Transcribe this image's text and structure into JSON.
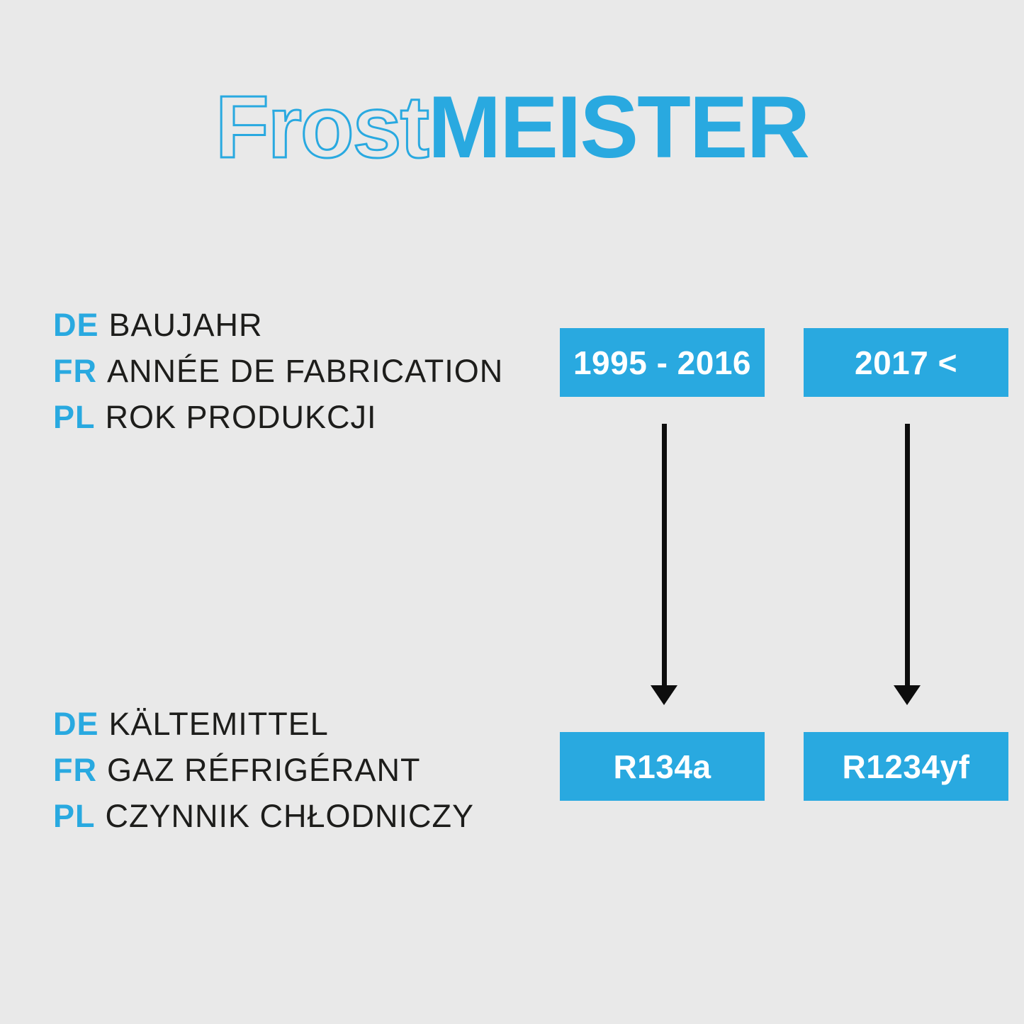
{
  "logo": {
    "outline_text": "Frost",
    "solid_text": "MEISTER"
  },
  "colors": {
    "accent_blue": "#29a9e0",
    "background": "#e9e9e9",
    "text_dark": "#1d1d1b",
    "arrow_black": "#0d0d0d",
    "box_text": "#ffffff"
  },
  "year_labels": {
    "rows": [
      {
        "prefix": "DE",
        "text": "BAUJAHR"
      },
      {
        "prefix": "FR",
        "text": "ANNÉE DE FABRICATION"
      },
      {
        "prefix": "PL",
        "text": "ROK PRODUKCJI"
      }
    ]
  },
  "refrigerant_labels": {
    "rows": [
      {
        "prefix": "DE",
        "text": "KÄLTEMITTEL"
      },
      {
        "prefix": "FR",
        "text": "GAZ RÉFRIGÉRANT"
      },
      {
        "prefix": "PL",
        "text": "CZYNNIK CHŁODNICZY"
      }
    ]
  },
  "year_boxes": [
    {
      "value": "1995 - 2016"
    },
    {
      "value": "2017 <"
    }
  ],
  "refrigerant_boxes": [
    {
      "value": "R134a"
    },
    {
      "value": "R1234yf"
    }
  ]
}
